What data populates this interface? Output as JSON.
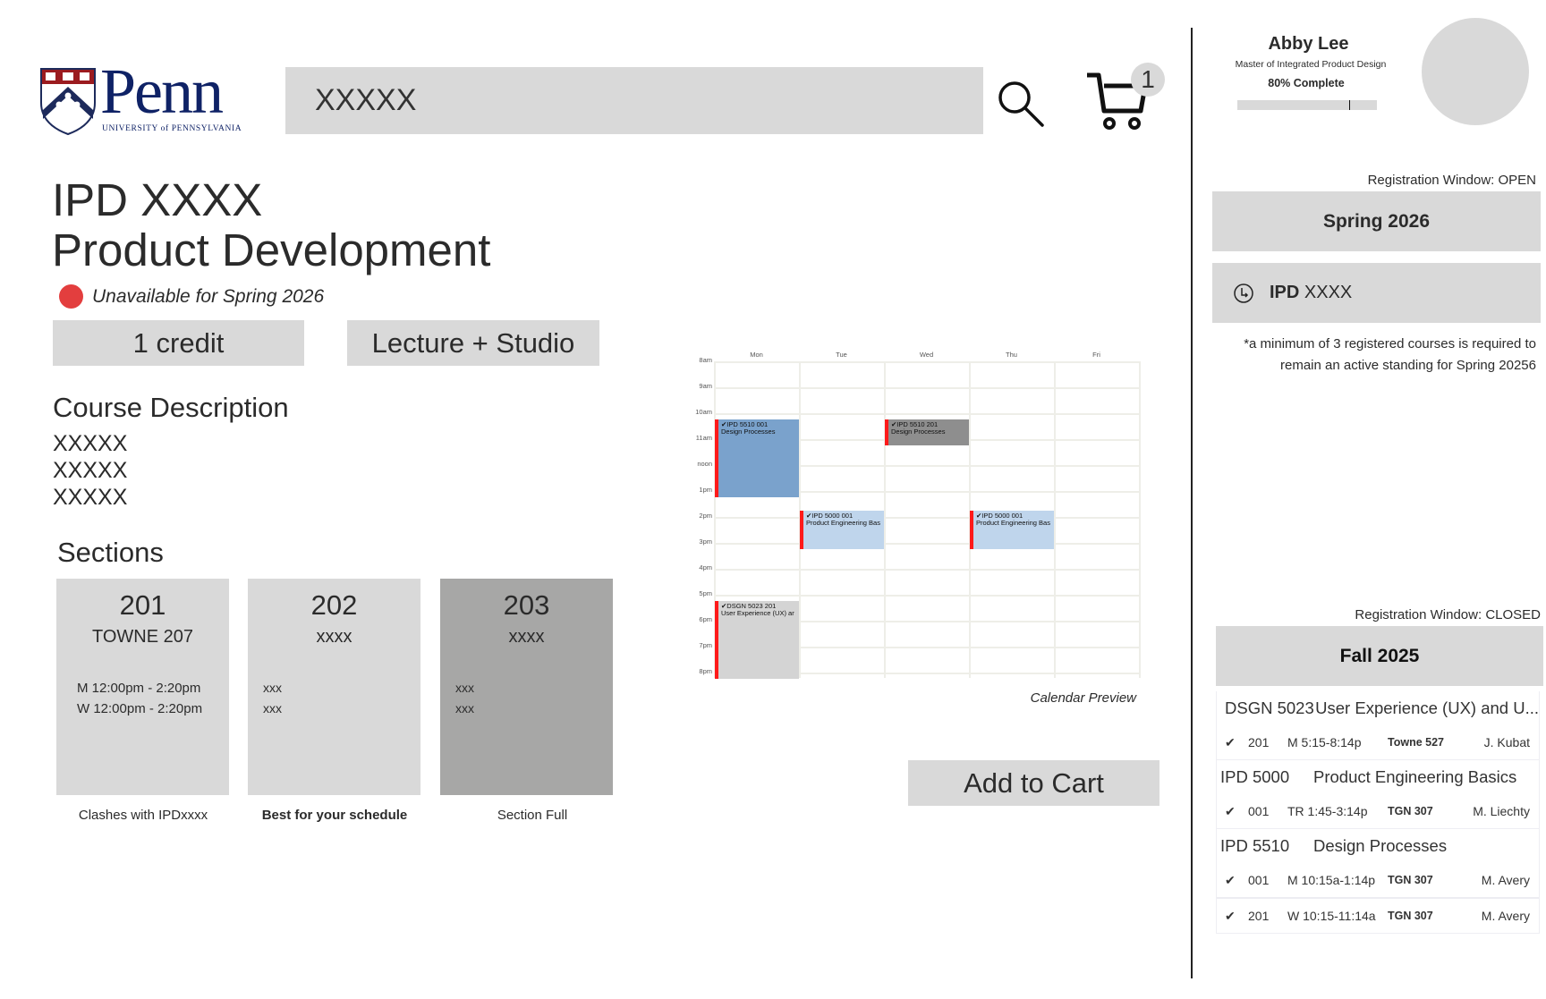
{
  "header": {
    "logo_text": "Penn",
    "logo_subtitle": "UNIVERSITY of PENNSYLVANIA",
    "search_value": "XXXXX",
    "cart_count": "1"
  },
  "course": {
    "code": "IPD XXXX",
    "name": "Product Development",
    "status": "Unavailable for Spring 2026",
    "status_color": "#e33e3e",
    "credits": "1 credit",
    "format": "Lecture + Studio",
    "description_heading": "Course Description",
    "description_lines": [
      "XXXXX",
      "XXXXX",
      "XXXXX"
    ]
  },
  "sections": {
    "heading": "Sections",
    "cards": [
      {
        "number": "201",
        "room": "TOWNE 207",
        "times": [
          "M 12:00pm - 2:20pm",
          "W 12:00pm - 2:20pm"
        ],
        "caption": "Clashes with IPDxxxx"
      },
      {
        "number": "202",
        "room": "xxxx",
        "times": [
          "xxx",
          "xxx"
        ],
        "caption": "Best for your schedule"
      },
      {
        "number": "203",
        "room": "xxxx",
        "times": [
          "xxx",
          "xxx"
        ],
        "caption": "Section Full"
      }
    ]
  },
  "calendar": {
    "caption": "Calendar Preview",
    "days": [
      "Mon",
      "Tue",
      "Wed",
      "Thu",
      "Fri"
    ],
    "hours": [
      "8am",
      "9am",
      "10am",
      "11am",
      "noon",
      "1pm",
      "2pm",
      "3pm",
      "4pm",
      "5pm",
      "6pm",
      "7pm",
      "8pm"
    ],
    "events": [
      {
        "day": "Mon",
        "start": 10.25,
        "end": 13.23,
        "title": "IPD 5510 001",
        "subtitle": "Design Processes",
        "color": "#7aa2cc"
      },
      {
        "day": "Wed",
        "start": 10.25,
        "end": 11.23,
        "title": "IPD 5510 201",
        "subtitle": "Design Processes",
        "color": "#8e8e8e"
      },
      {
        "day": "Tue",
        "start": 13.75,
        "end": 15.23,
        "title": "IPD 5000 001",
        "subtitle": "Product Engineering Bas",
        "color": "#bfd5ec"
      },
      {
        "day": "Thu",
        "start": 13.75,
        "end": 15.23,
        "title": "IPD 5000 001",
        "subtitle": "Product Engineering Bas",
        "color": "#bfd5ec"
      },
      {
        "day": "Mon",
        "start": 17.25,
        "end": 20.23,
        "title": "DSGN 5023 201",
        "subtitle": "User Experience (UX) ar",
        "color": "#d4d4d4"
      }
    ]
  },
  "add_to_cart": "Add to Cart",
  "profile": {
    "name": "Abby Lee",
    "program": "Master of Integrated Product Design",
    "progress_label": "80% Complete",
    "progress": 0.8
  },
  "spring": {
    "window": "Registration Window: OPEN",
    "term": "Spring 2026",
    "course_prefix": "IPD",
    "course_code": "XXXX",
    "note_line1": "*a minimum of 3 registered courses is required to",
    "note_line2": "remain an active standing for Spring 20256"
  },
  "fall": {
    "window": "Registration Window: CLOSED",
    "term": "Fall 2025",
    "courses": [
      {
        "code": "DSGN 5023",
        "title": "User Experience (UX) and U...",
        "sections": [
          {
            "section": "201",
            "time": "M 5:15-8:14p",
            "room": "Towne 527",
            "instructor": "J. Kubat"
          }
        ]
      },
      {
        "code": "IPD 5000",
        "title": "Product Engineering Basics",
        "sections": [
          {
            "section": "001",
            "time": "TR 1:45-3:14p",
            "room": "TGN 307",
            "instructor": "M. Liechty"
          }
        ]
      },
      {
        "code": "IPD 5510",
        "title": "Design Processes",
        "sections": [
          {
            "section": "001",
            "time": "M 10:15a-1:14p",
            "room": "TGN 307",
            "instructor": "M. Avery"
          },
          {
            "section": "201",
            "time": "W 10:15-11:14a",
            "room": "TGN 307",
            "instructor": "M. Avery"
          }
        ]
      }
    ]
  }
}
